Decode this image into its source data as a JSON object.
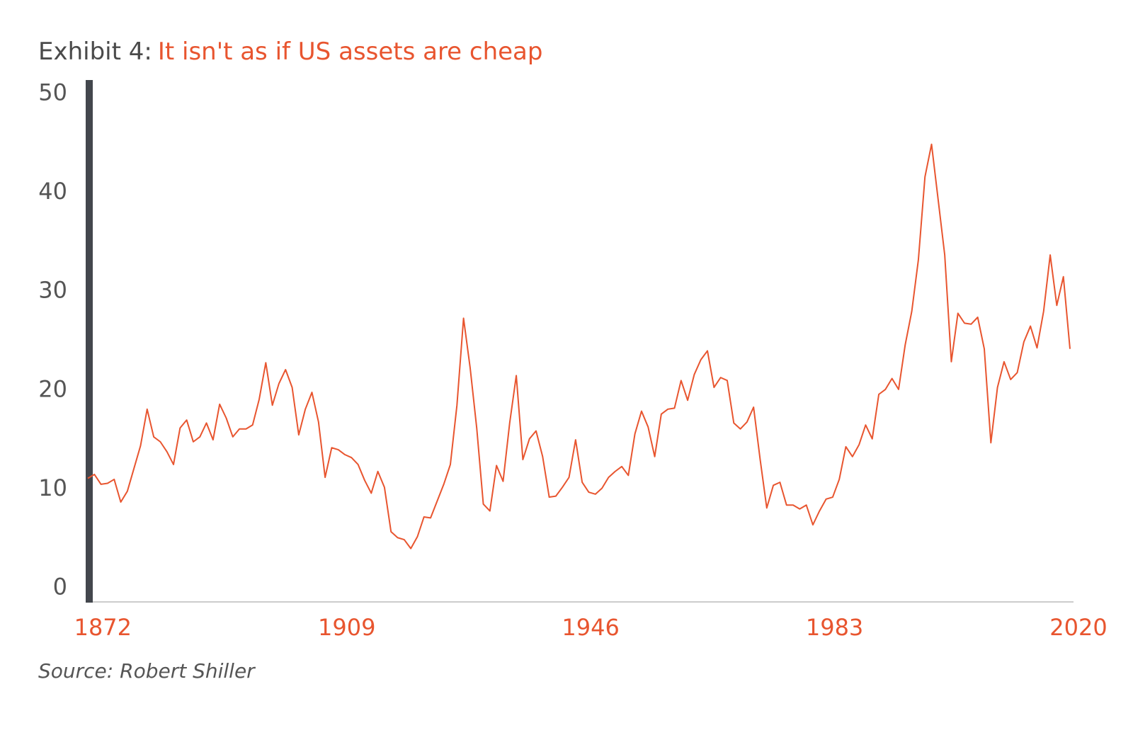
{
  "chart_data": {
    "type": "line",
    "title": "Exhibit 4:",
    "subtitle": "It isn't as if US assets are cheap",
    "source": "Source: Robert Shiller",
    "color": "#e8552f",
    "x": [
      1871,
      1872,
      1873,
      1874,
      1875,
      1876,
      1877,
      1878,
      1879,
      1880,
      1881,
      1882,
      1883,
      1884,
      1885,
      1886,
      1887,
      1888,
      1889,
      1890,
      1891,
      1892,
      1893,
      1894,
      1895,
      1896,
      1897,
      1898,
      1899,
      1900,
      1901,
      1902,
      1903,
      1904,
      1905,
      1906,
      1907,
      1908,
      1909,
      1910,
      1911,
      1912,
      1913,
      1914,
      1915,
      1916,
      1917,
      1918,
      1919,
      1920,
      1921,
      1922,
      1923,
      1924,
      1925,
      1926,
      1927,
      1928,
      1929,
      1930,
      1931,
      1932,
      1933,
      1934,
      1935,
      1936,
      1937,
      1938,
      1939,
      1940,
      1941,
      1942,
      1943,
      1944,
      1945,
      1946,
      1947,
      1948,
      1949,
      1950,
      1951,
      1952,
      1953,
      1954,
      1955,
      1956,
      1957,
      1958,
      1959,
      1960,
      1961,
      1962,
      1963,
      1964,
      1965,
      1966,
      1967,
      1968,
      1969,
      1970,
      1971,
      1972,
      1973,
      1974,
      1975,
      1976,
      1977,
      1978,
      1979,
      1980,
      1981,
      1982,
      1983,
      1984,
      1985,
      1986,
      1987,
      1988,
      1989,
      1990,
      1991,
      1992,
      1993,
      1994,
      1995,
      1996,
      1997,
      1998,
      1999,
      2000,
      2001,
      2002,
      2003,
      2004,
      2005,
      2006,
      2007,
      2008,
      2009,
      2010,
      2011,
      2012,
      2013,
      2014,
      2015,
      2016,
      2017,
      2018,
      2019,
      2020
    ],
    "values": [
      11.1,
      11.5,
      10.5,
      10.6,
      11.0,
      8.7,
      9.8,
      12.1,
      14.4,
      18.1,
      15.3,
      14.8,
      13.8,
      12.5,
      16.2,
      17.0,
      14.8,
      15.3,
      16.7,
      15.0,
      18.6,
      17.2,
      15.3,
      16.1,
      16.1,
      16.5,
      19.1,
      22.8,
      18.5,
      20.7,
      22.1,
      20.3,
      15.5,
      18.1,
      19.8,
      16.8,
      11.2,
      14.2,
      14.0,
      13.5,
      13.2,
      12.5,
      10.9,
      9.6,
      11.8,
      10.2,
      5.7,
      5.1,
      4.9,
      4.0,
      5.2,
      7.2,
      7.1,
      8.8,
      10.5,
      12.5,
      18.5,
      27.3,
      22.3,
      16.2,
      8.5,
      7.8,
      12.4,
      10.8,
      16.7,
      21.5,
      13.0,
      15.1,
      15.9,
      13.3,
      9.2,
      9.3,
      10.2,
      11.2,
      15.0,
      10.7,
      9.7,
      9.5,
      10.1,
      11.2,
      11.8,
      12.3,
      11.4,
      15.6,
      17.9,
      16.3,
      13.3,
      17.6,
      18.1,
      18.2,
      21.0,
      19.0,
      21.6,
      23.1,
      24.0,
      20.3,
      21.3,
      21.0,
      16.7,
      16.1,
      16.8,
      18.3,
      13.0,
      8.1,
      10.4,
      10.7,
      8.4,
      8.4,
      8.0,
      8.4,
      6.4,
      7.8,
      9.0,
      9.2,
      11.0,
      14.3,
      13.3,
      14.5,
      16.5,
      15.1,
      19.6,
      20.1,
      21.2,
      20.1,
      24.6,
      28.0,
      33.2,
      41.6,
      44.9,
      39.3,
      33.7,
      22.9,
      27.8,
      26.8,
      26.7,
      27.4,
      24.2,
      14.7,
      20.3,
      22.9,
      21.1,
      21.8,
      24.9,
      26.5,
      24.3,
      28.0,
      33.7,
      28.6,
      31.5,
      24.2
    ],
    "xlim": [
      1871,
      2020
    ],
    "xticks": [
      1872,
      1909,
      1946,
      1983,
      2020
    ],
    "ylim": [
      -1.4,
      51.4
    ],
    "yticks": [
      0,
      10,
      20,
      30,
      40,
      50
    ],
    "grid": false
  }
}
